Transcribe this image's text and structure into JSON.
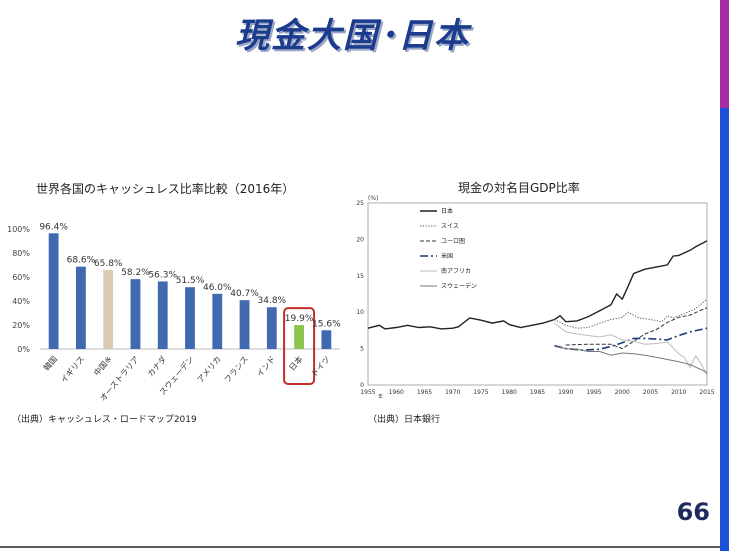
{
  "slide": {
    "title": "現金大国･日本",
    "page_number": "66",
    "colors": {
      "title": "#1b3b8c",
      "bar_purple": "#a52fa2",
      "bar_blue": "#1c50d6"
    }
  },
  "chart_data": [
    {
      "type": "bar",
      "title": "世界各国のキャッシュレス比率比較（2016年）",
      "source": "（出典）キャッシュレス・ロードマップ2019",
      "categories": [
        "韓国",
        "イギリス",
        "中国※",
        "オーストラリア",
        "カナダ",
        "スウェーデン",
        "アメリカ",
        "フランス",
        "インド",
        "日本",
        "ドイツ"
      ],
      "values": [
        96.4,
        68.6,
        65.8,
        58.2,
        56.3,
        51.5,
        46.0,
        40.7,
        34.8,
        19.9,
        15.6
      ],
      "value_labels": [
        "96.4%",
        "68.6%",
        "65.8%",
        "58.2%",
        "56.3%",
        "51.5%",
        "46.0%",
        "40.7%",
        "34.8%",
        "19.9%",
        "15.6%"
      ],
      "ylim": [
        0,
        100
      ],
      "yticks": [
        "0%",
        "20%",
        "40%",
        "60%",
        "80%",
        "100%"
      ],
      "colors": {
        "default": "#4169b0",
        "中国※": "#d9cbb2",
        "日本": "#8cc44d",
        "highlight_box": "#c0302a"
      },
      "highlight": "日本"
    },
    {
      "type": "line",
      "title": "現金の対名目GDP比率",
      "source": "（出典）日本銀行",
      "ylabel": "(%)",
      "xunit": "年",
      "xlim": [
        1955,
        2015
      ],
      "ylim": [
        0,
        25
      ],
      "xticks": [
        "1955",
        "1960",
        "1965",
        "1970",
        "1975",
        "1980",
        "1985",
        "1990",
        "1995",
        "2000",
        "2005",
        "2010",
        "2015"
      ],
      "yticks": [
        "0",
        "5",
        "10",
        "15",
        "20",
        "25"
      ],
      "series": [
        {
          "name": "日本",
          "style": "solid",
          "color": "#222222",
          "points": [
            [
              1955,
              7.8
            ],
            [
              1957,
              8.2
            ],
            [
              1958,
              7.7
            ],
            [
              1960,
              7.9
            ],
            [
              1962,
              8.2
            ],
            [
              1964,
              7.9
            ],
            [
              1966,
              8.0
            ],
            [
              1968,
              7.7
            ],
            [
              1970,
              7.8
            ],
            [
              1971,
              8.0
            ],
            [
              1973,
              9.2
            ],
            [
              1975,
              8.9
            ],
            [
              1977,
              8.5
            ],
            [
              1979,
              8.8
            ],
            [
              1980,
              8.3
            ],
            [
              1982,
              7.9
            ],
            [
              1984,
              8.2
            ],
            [
              1986,
              8.5
            ],
            [
              1988,
              9.0
            ],
            [
              1989,
              9.5
            ],
            [
              1990,
              8.7
            ],
            [
              1992,
              8.8
            ],
            [
              1994,
              9.4
            ],
            [
              1996,
              10.2
            ],
            [
              1998,
              11.0
            ],
            [
              1999,
              12.5
            ],
            [
              2000,
              11.8
            ],
            [
              2001,
              13.5
            ],
            [
              2002,
              15.3
            ],
            [
              2004,
              15.9
            ],
            [
              2006,
              16.2
            ],
            [
              2008,
              16.5
            ],
            [
              2009,
              17.7
            ],
            [
              2010,
              17.8
            ],
            [
              2012,
              18.5
            ],
            [
              2013,
              19.0
            ],
            [
              2015,
              19.8
            ]
          ]
        },
        {
          "name": "スイス",
          "style": "dotted",
          "color": "#555555",
          "points": [
            [
              1988,
              9.0
            ],
            [
              1990,
              8.2
            ],
            [
              1992,
              7.8
            ],
            [
              1994,
              7.9
            ],
            [
              1996,
              8.5
            ],
            [
              1998,
              9.0
            ],
            [
              2000,
              9.3
            ],
            [
              2001,
              10.0
            ],
            [
              2003,
              9.2
            ],
            [
              2005,
              9.0
            ],
            [
              2007,
              8.7
            ],
            [
              2008,
              9.5
            ],
            [
              2009,
              9.2
            ],
            [
              2011,
              9.8
            ],
            [
              2013,
              10.5
            ],
            [
              2015,
              11.8
            ]
          ]
        },
        {
          "name": "ユーロ圏",
          "style": "dashed",
          "color": "#333333",
          "points": [
            [
              1990,
              5.5
            ],
            [
              1994,
              5.6
            ],
            [
              1998,
              5.6
            ],
            [
              2000,
              5.0
            ],
            [
              2002,
              6.0
            ],
            [
              2004,
              7.0
            ],
            [
              2006,
              7.6
            ],
            [
              2008,
              8.6
            ],
            [
              2010,
              9.3
            ],
            [
              2012,
              9.6
            ],
            [
              2014,
              10.3
            ],
            [
              2015,
              10.6
            ]
          ]
        },
        {
          "name": "米国",
          "style": "dashdot",
          "color": "#1f3a78",
          "points": [
            [
              1988,
              5.4
            ],
            [
              1990,
              5.0
            ],
            [
              1993,
              4.8
            ],
            [
              1996,
              4.9
            ],
            [
              1998,
              5.3
            ],
            [
              2000,
              5.8
            ],
            [
              2002,
              6.4
            ],
            [
              2004,
              6.4
            ],
            [
              2006,
              6.3
            ],
            [
              2008,
              6.2
            ],
            [
              2010,
              6.8
            ],
            [
              2012,
              7.3
            ],
            [
              2015,
              7.8
            ]
          ]
        },
        {
          "name": "南アフリカ",
          "style": "solid",
          "color": "#bbbbbb",
          "points": [
            [
              1988,
              8.5
            ],
            [
              1990,
              7.3
            ],
            [
              1992,
              7.0
            ],
            [
              1994,
              6.8
            ],
            [
              1996,
              6.6
            ],
            [
              1998,
              6.9
            ],
            [
              2000,
              6.2
            ],
            [
              2002,
              6.0
            ],
            [
              2004,
              5.6
            ],
            [
              2006,
              5.7
            ],
            [
              2008,
              5.9
            ],
            [
              2010,
              4.3
            ],
            [
              2011,
              3.8
            ],
            [
              2012,
              2.4
            ],
            [
              2013,
              4.0
            ],
            [
              2014,
              2.9
            ],
            [
              2015,
              1.3
            ]
          ]
        },
        {
          "name": "スウェーデン",
          "style": "solid",
          "color": "#777777",
          "points": [
            [
              1988,
              5.3
            ],
            [
              1990,
              5.0
            ],
            [
              1992,
              4.9
            ],
            [
              1994,
              4.6
            ],
            [
              1996,
              4.6
            ],
            [
              1998,
              4.1
            ],
            [
              2000,
              4.4
            ],
            [
              2002,
              4.3
            ],
            [
              2004,
              4.1
            ],
            [
              2006,
              3.8
            ],
            [
              2008,
              3.5
            ],
            [
              2010,
              3.2
            ],
            [
              2012,
              2.8
            ],
            [
              2014,
              2.1
            ],
            [
              2015,
              1.7
            ]
          ]
        }
      ]
    }
  ]
}
